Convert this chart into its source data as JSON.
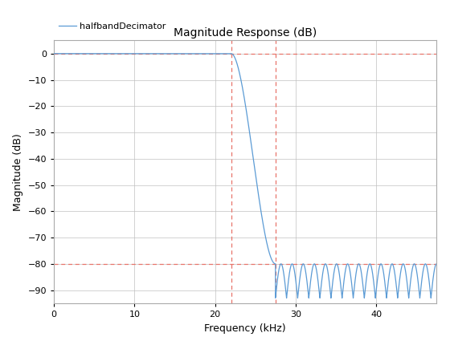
{
  "title": "Magnitude Response (dB)",
  "xlabel": "Frequency (kHz)",
  "ylabel": "Magnitude (dB)",
  "legend_label": "halfbandDecimator",
  "xlim": [
    0,
    47.5
  ],
  "ylim": [
    -95,
    5
  ],
  "xticks": [
    0,
    10,
    20,
    30,
    40
  ],
  "yticks": [
    0,
    -10,
    -20,
    -30,
    -40,
    -50,
    -60,
    -70,
    -80,
    -90
  ],
  "passband_end": 22.0,
  "transition_end": 27.5,
  "stopband_level": -80.0,
  "stopband_trough": -93.0,
  "blue_color": "#5b9bd5",
  "red_color": "#e8746a",
  "bg_color": "#ffffff",
  "grid_color": "#c0c0c0",
  "ripple_cycles": 14.5,
  "fig_width": 5.6,
  "fig_height": 4.2,
  "dpi": 100
}
